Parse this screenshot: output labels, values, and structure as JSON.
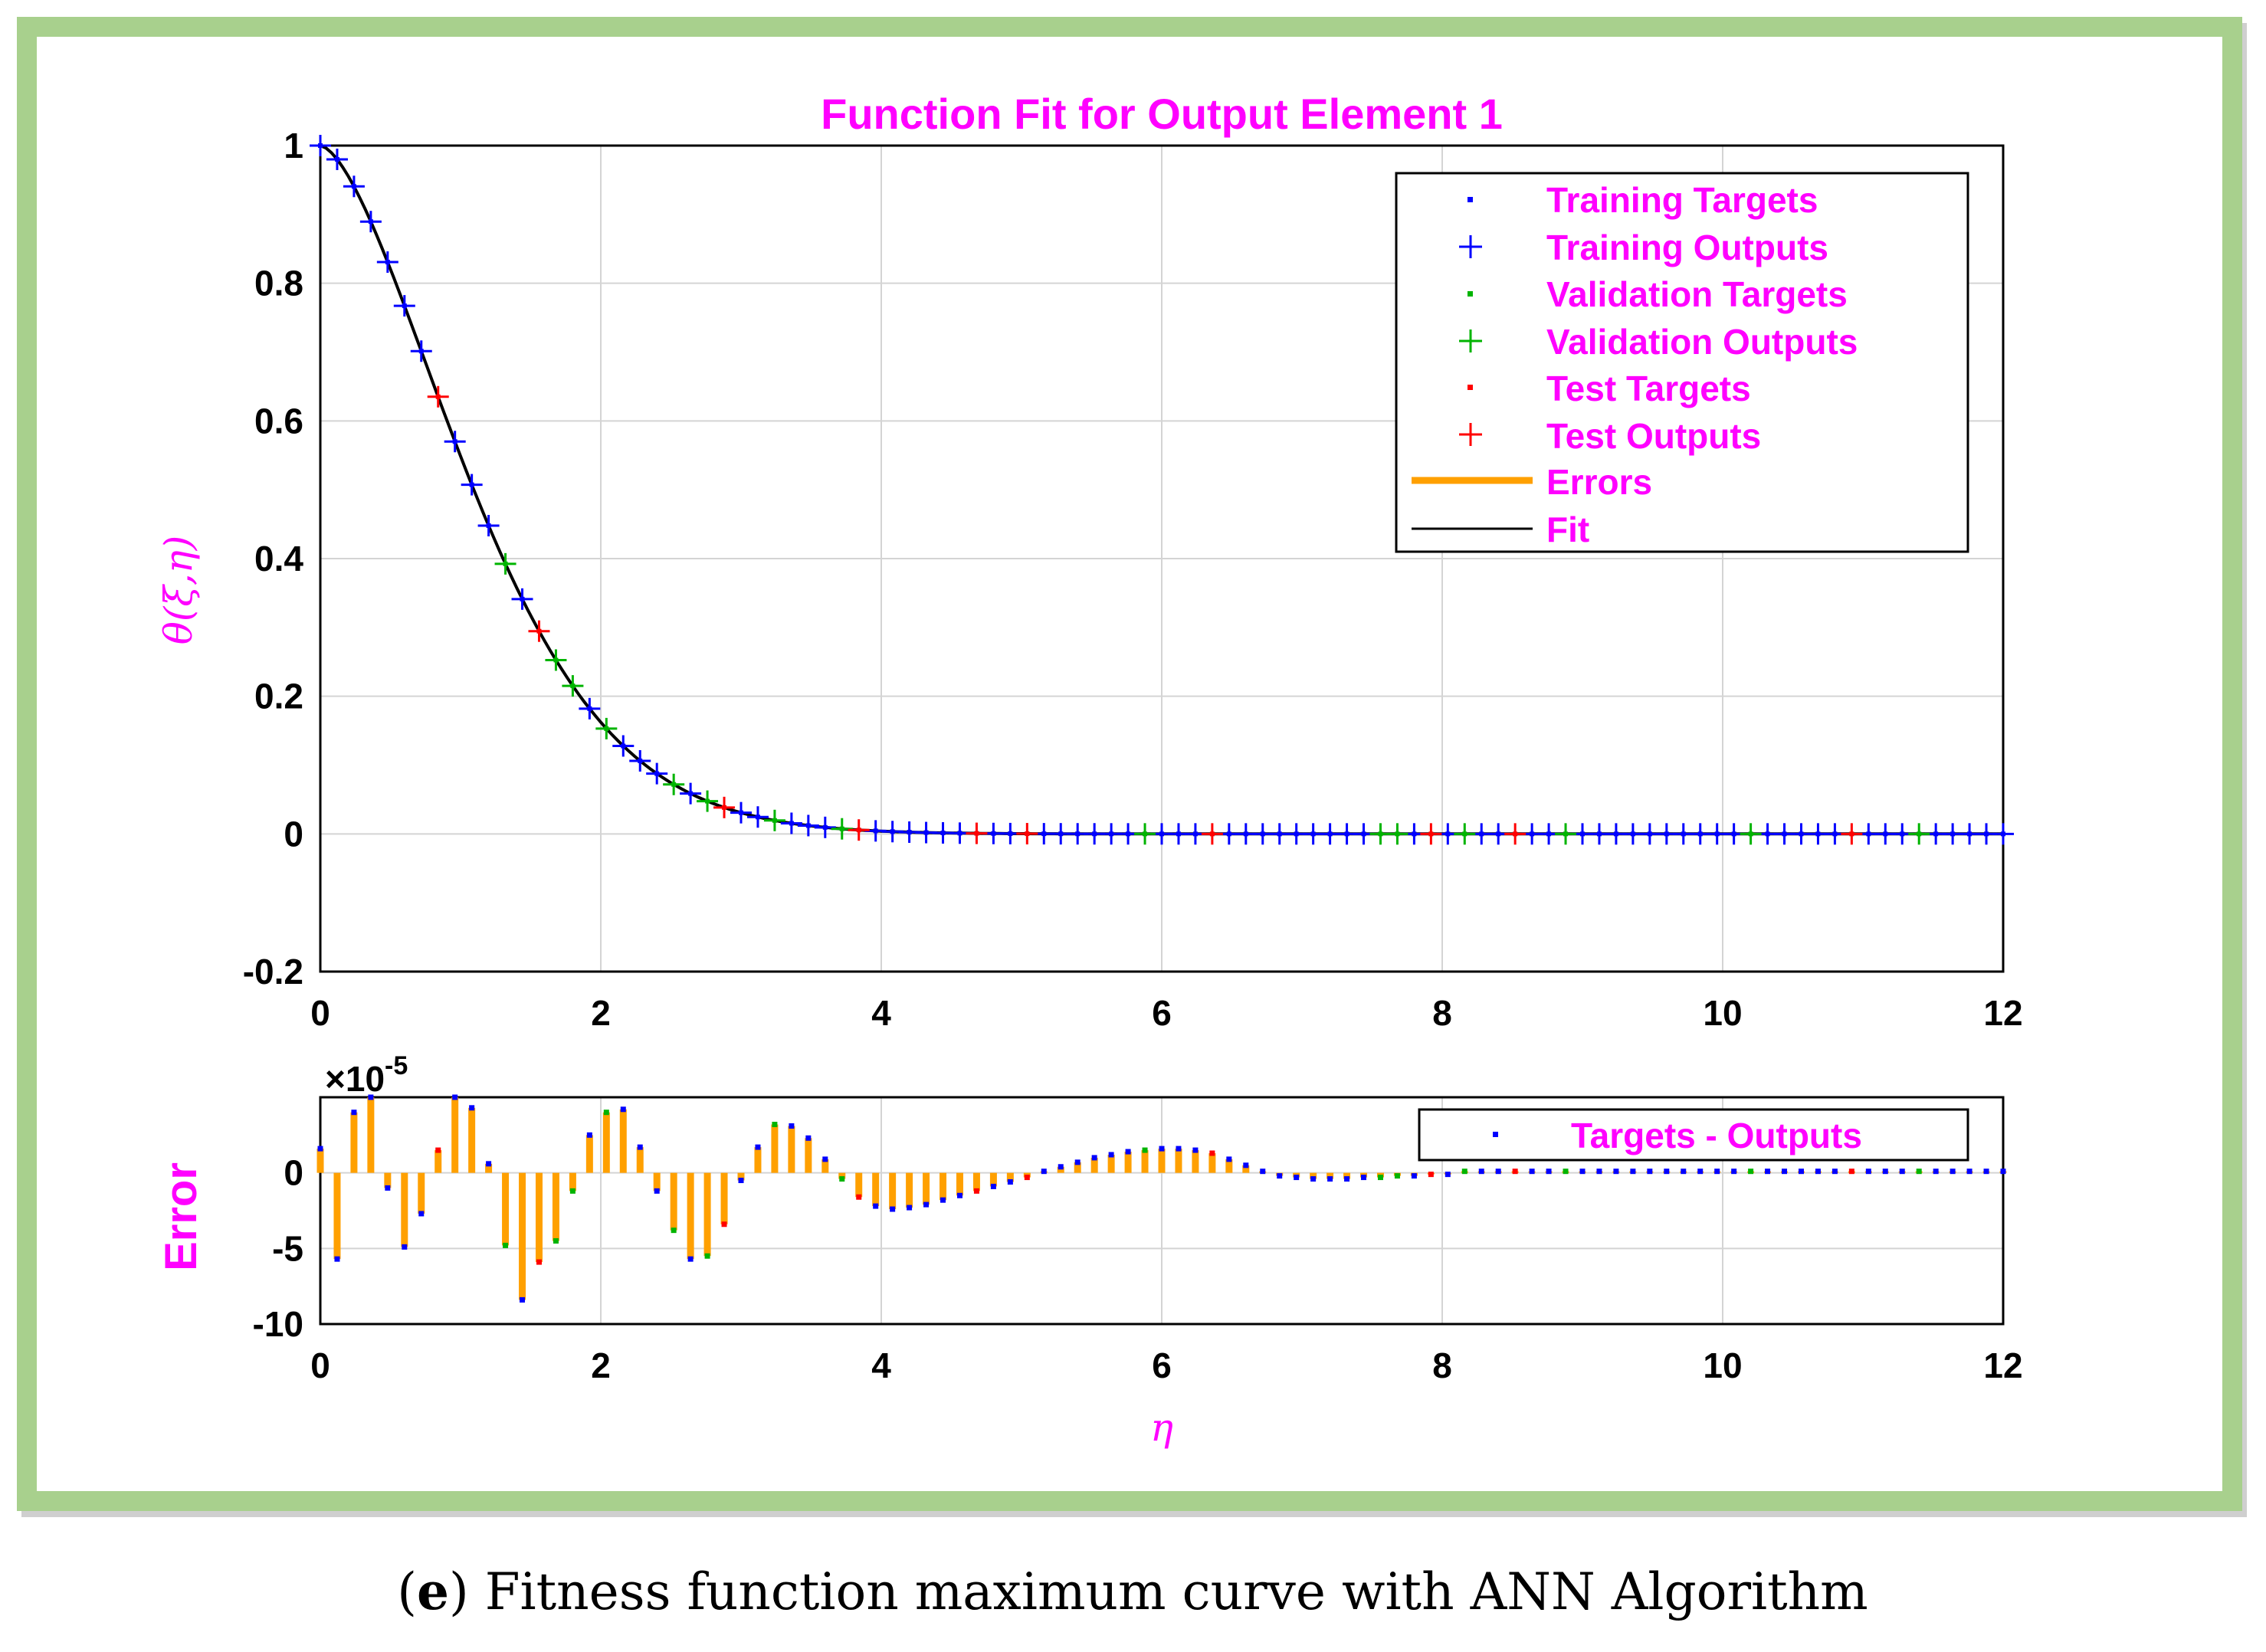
{
  "caption": {
    "letter": "e",
    "open": "(",
    "close": ")",
    "text": " Fitness function maximum curve with ANN Algorithm"
  },
  "colors": {
    "frame": "#a8d08d",
    "title": "#ff00ff",
    "training": "#0000ff",
    "validation": "#00b400",
    "test": "#ff0000",
    "errors": "#ffa000",
    "fit": "#000000",
    "grid": "#d4d4d4"
  },
  "chart_data": [
    {
      "type": "line",
      "title": "Function Fit for Output Element 1",
      "xlabel": "η",
      "ylabel": "θ(ξ,η)",
      "xlim": [
        0,
        12
      ],
      "ylim": [
        -0.2,
        1
      ],
      "xticks": [
        0,
        2,
        4,
        6,
        8,
        10,
        12
      ],
      "xtick_labels": [
        "0",
        "2",
        "4",
        "6",
        "8",
        "10",
        "12"
      ],
      "yticks": [
        -0.2,
        0,
        0.2,
        0.4,
        0.6,
        0.8,
        1
      ],
      "ytick_labels": [
        "-0.2",
        "0",
        "0.2",
        "0.4",
        "0.6",
        "0.8",
        "1"
      ],
      "grid": true,
      "legend_position": "top-right",
      "legend": [
        "Training Targets",
        "Training Outputs",
        "Validation Targets",
        "Validation Outputs",
        "Test Targets",
        "Test Outputs",
        "Errors",
        "Fit"
      ],
      "fit": {
        "name": "Fit",
        "formula": "exp(-0.6 * x^1.6)",
        "x_range": [
          0,
          12
        ]
      },
      "series": [
        {
          "name": "Training Outputs",
          "x": [
            0,
            0.12,
            0.24,
            0.36,
            0.48,
            0.6,
            0.72,
            0.96,
            1.08,
            1.2,
            1.44,
            1.92,
            2.16,
            2.28,
            2.4,
            2.64,
            3.0,
            3.12,
            3.36,
            3.48,
            3.6,
            3.96,
            4.08,
            4.2,
            4.32,
            4.44,
            4.56,
            4.8,
            4.92,
            5.16,
            5.28,
            5.4,
            5.52,
            5.64,
            5.76,
            6.0,
            6.12,
            6.24,
            6.48,
            6.6,
            6.72,
            6.84,
            6.96,
            7.08,
            7.2,
            7.32,
            7.44,
            7.8,
            8.04,
            8.28,
            8.4,
            8.64,
            8.76,
            9.0,
            9.12,
            9.24,
            9.36,
            9.48,
            9.6,
            9.72,
            9.84,
            9.96,
            10.08,
            10.32,
            10.44,
            10.56,
            10.68,
            10.8,
            11.04,
            11.16,
            11.28,
            11.52,
            11.64,
            11.76,
            11.88,
            12.0
          ]
        },
        {
          "name": "Validation Outputs",
          "x": [
            1.32,
            1.68,
            1.8,
            2.04,
            2.52,
            2.76,
            3.24,
            3.72,
            5.88,
            7.56,
            7.68,
            8.16,
            8.88,
            10.2,
            11.4
          ]
        },
        {
          "name": "Test Outputs",
          "x": [
            0.84,
            1.56,
            2.88,
            3.84,
            4.68,
            5.04,
            6.36,
            7.92,
            8.52,
            10.92
          ]
        }
      ]
    },
    {
      "type": "bar",
      "title": "",
      "xlabel": "η",
      "ylabel": "Error",
      "xlim": [
        0,
        12
      ],
      "ylim": [
        -10,
        5
      ],
      "xticks": [
        0,
        2,
        4,
        6,
        8,
        10,
        12
      ],
      "xtick_labels": [
        "0",
        "2",
        "4",
        "6",
        "8",
        "10",
        "12"
      ],
      "yticks": [
        -10,
        -5,
        0
      ],
      "ytick_labels": [
        "-10",
        "-5",
        "0"
      ],
      "scale_label": "×10",
      "scale_exponent": "-5",
      "grid": true,
      "legend_position": "top-right",
      "legend": [
        "Targets - Outputs"
      ],
      "x": [
        0,
        0.12,
        0.24,
        0.36,
        0.48,
        0.6,
        0.72,
        0.84,
        0.96,
        1.08,
        1.2,
        1.32,
        1.44,
        1.56,
        1.68,
        1.8,
        1.92,
        2.04,
        2.16,
        2.28,
        2.4,
        2.52,
        2.64,
        2.76,
        2.88,
        3.0,
        3.12,
        3.24,
        3.36,
        3.48,
        3.6,
        3.72,
        3.84,
        3.96,
        4.08,
        4.2,
        4.32,
        4.44,
        4.56,
        4.68,
        4.8,
        4.92,
        5.04,
        5.16,
        5.28,
        5.4,
        5.52,
        5.64,
        5.76,
        5.88,
        6.0,
        6.12,
        6.24,
        6.36,
        6.48,
        6.6,
        6.72,
        6.84,
        6.96,
        7.08,
        7.2,
        7.32,
        7.44,
        7.56,
        7.68,
        7.8,
        7.92,
        8.04,
        8.16,
        8.28,
        8.4,
        8.52,
        8.64,
        8.76,
        8.88,
        9.0,
        9.12,
        9.24,
        9.36,
        9.48,
        9.6,
        9.72,
        9.84,
        9.96,
        10.08,
        10.2,
        10.32,
        10.44,
        10.56,
        10.68,
        10.8,
        10.92,
        11.04,
        11.16,
        11.28,
        11.4,
        11.52,
        11.64,
        11.76,
        11.88,
        12.0
      ],
      "values": [
        1.6,
        -5.7,
        4.0,
        5.0,
        -1.0,
        -4.9,
        -2.7,
        1.5,
        5.0,
        4.3,
        0.6,
        -4.8,
        -8.4,
        -5.9,
        -4.5,
        -1.2,
        2.5,
        4.0,
        4.2,
        1.7,
        -1.2,
        -3.8,
        -5.7,
        -5.5,
        -3.4,
        -0.5,
        1.7,
        3.2,
        3.1,
        2.3,
        0.9,
        -0.4,
        -1.6,
        -2.2,
        -2.4,
        -2.3,
        -2.1,
        -1.8,
        -1.5,
        -1.2,
        -0.9,
        -0.6,
        -0.3,
        0.1,
        0.4,
        0.7,
        1.0,
        1.2,
        1.4,
        1.5,
        1.6,
        1.6,
        1.5,
        1.3,
        0.9,
        0.5,
        0.1,
        -0.2,
        -0.3,
        -0.4,
        -0.4,
        -0.4,
        -0.3,
        -0.3,
        -0.2,
        -0.2,
        -0.1,
        -0.1,
        0.1,
        0.1,
        0.1,
        0.1,
        0.1,
        0.1,
        0.1,
        0.1,
        0.1,
        0.1,
        0.1,
        0.1,
        0.1,
        0.1,
        0.1,
        0.1,
        0.1,
        0.1,
        0.1,
        0.1,
        0.1,
        0.1,
        0.1,
        0.1,
        0.1,
        0.1,
        0.1,
        0.1,
        0.1,
        0.1,
        0.1,
        0.1,
        0.1
      ]
    }
  ]
}
